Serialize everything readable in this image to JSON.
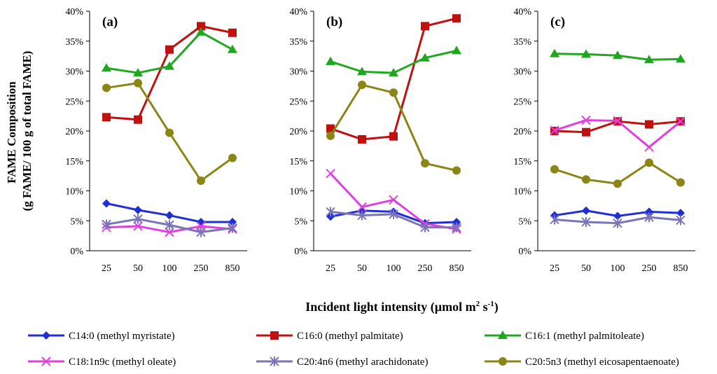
{
  "chart_data": {
    "type": "line",
    "ylabel_line1": "FAME Composition",
    "ylabel_line2": "(g FAME/ 100 g of  total FAME)",
    "xlabel_prefix": "Incident light intensity (µmol m",
    "xlabel_sup1": "2",
    "xlabel_mid": " s",
    "xlabel_sup2": "-1",
    "xlabel_suffix": ")",
    "categories": [
      "25",
      "50",
      "100",
      "250",
      "850"
    ],
    "y_ticks": [
      "0%",
      "5%",
      "10%",
      "15%",
      "20%",
      "25%",
      "30%",
      "35%",
      "40%"
    ],
    "ylim": [
      0,
      40
    ],
    "legend": [
      {
        "name": "C14:0 (methyl myristate)",
        "color": "#1f2fd6",
        "marker": "diamond"
      },
      {
        "name": "C16:0 (methyl palmitate)",
        "color": "#c01010",
        "marker": "square"
      },
      {
        "name": "C16:1 (methyl palmitoleate)",
        "color": "#1fa81f",
        "marker": "triangle"
      },
      {
        "name": "C18:1n9c (methyl oleate)",
        "color": "#e040e0",
        "marker": "x"
      },
      {
        "name": "C20:4n6 (methyl arachidonate)",
        "color": "#7a74b8",
        "marker": "star"
      },
      {
        "name": "C20:5n3 (methyl eicosapentaenoate)",
        "color": "#8b8515",
        "marker": "circle"
      }
    ],
    "panels": [
      {
        "label": "(a)",
        "series": [
          {
            "name": "C14:0 (methyl myristate)",
            "values": [
              7.9,
              6.8,
              5.9,
              4.8,
              4.8
            ]
          },
          {
            "name": "C16:0 (methyl palmitate)",
            "values": [
              22.3,
              21.9,
              33.6,
              37.5,
              36.4
            ]
          },
          {
            "name": "C16:1 (methyl palmitoleate)",
            "values": [
              30.5,
              29.7,
              30.8,
              36.5,
              33.6
            ]
          },
          {
            "name": "C18:1n9c (methyl oleate)",
            "values": [
              3.9,
              4.1,
              3.1,
              4.1,
              3.6
            ]
          },
          {
            "name": "C20:4n6 (methyl arachidonate)",
            "values": [
              4.4,
              5.3,
              4.3,
              3.1,
              3.8
            ]
          },
          {
            "name": "C20:5n3 (methyl eicosapentaenoate)",
            "values": [
              27.2,
              28.0,
              19.7,
              11.7,
              15.5
            ]
          }
        ]
      },
      {
        "label": "(b)",
        "series": [
          {
            "name": "C14:0 (methyl myristate)",
            "values": [
              5.7,
              6.7,
              6.5,
              4.6,
              4.8
            ]
          },
          {
            "name": "C16:0 (methyl palmitate)",
            "values": [
              20.4,
              18.6,
              19.1,
              37.5,
              38.8
            ]
          },
          {
            "name": "C16:1 (methyl palmitoleate)",
            "values": [
              31.6,
              29.9,
              29.7,
              32.2,
              33.4
            ]
          },
          {
            "name": "C18:1n9c (methyl oleate)",
            "values": [
              12.9,
              7.3,
              8.5,
              4.5,
              3.6
            ]
          },
          {
            "name": "C20:4n6 (methyl arachidonate)",
            "values": [
              6.5,
              5.9,
              6.1,
              3.9,
              3.9
            ]
          },
          {
            "name": "C20:5n3 (methyl eicosapentaenoate)",
            "values": [
              19.2,
              27.7,
              26.4,
              14.6,
              13.4
            ]
          }
        ]
      },
      {
        "label": "(c)",
        "series": [
          {
            "name": "C14:0 (methyl myristate)",
            "values": [
              5.9,
              6.7,
              5.8,
              6.5,
              6.3
            ]
          },
          {
            "name": "C16:0 (methyl palmitate)",
            "values": [
              20.0,
              19.8,
              21.6,
              21.1,
              21.6
            ]
          },
          {
            "name": "C16:1 (methyl palmitoleate)",
            "values": [
              32.9,
              32.8,
              32.6,
              31.9,
              32.0
            ]
          },
          {
            "name": "C18:1n9c (methyl oleate)",
            "values": [
              20.1,
              21.8,
              21.7,
              17.3,
              21.6
            ]
          },
          {
            "name": "C20:4n6 (methyl arachidonate)",
            "values": [
              5.2,
              4.8,
              4.6,
              5.6,
              5.1
            ]
          },
          {
            "name": "C20:5n3 (methyl eicosapentaenoate)",
            "values": [
              13.6,
              11.9,
              11.2,
              14.7,
              11.4
            ]
          }
        ]
      }
    ]
  }
}
